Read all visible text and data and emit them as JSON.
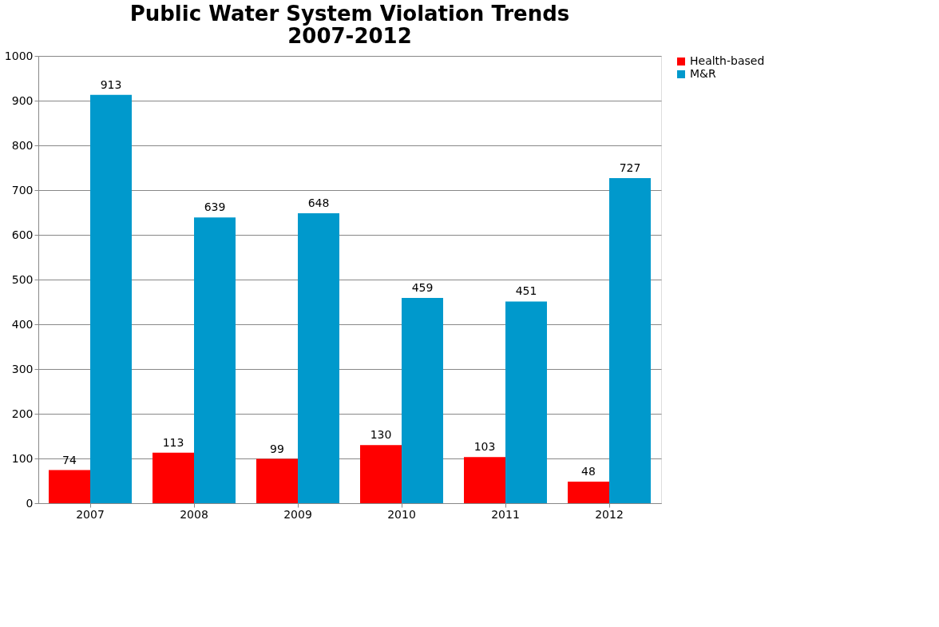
{
  "chart_data": {
    "type": "bar",
    "title": "Public Water System Violation Trends\n2007-2012",
    "categories": [
      "2007",
      "2008",
      "2009",
      "2010",
      "2011",
      "2012"
    ],
    "series": [
      {
        "name": "Health-based",
        "color": "#ff0000",
        "values": [
          74,
          113,
          99,
          130,
          103,
          48
        ]
      },
      {
        "name": "M&R",
        "color": "#0099cc",
        "values": [
          913,
          639,
          648,
          459,
          451,
          727
        ]
      }
    ],
    "ylim": [
      0,
      1000
    ],
    "yticks": [
      0,
      100,
      200,
      300,
      400,
      500,
      600,
      700,
      800,
      900,
      1000
    ],
    "grid": "y",
    "legend": "right",
    "data_labels": true
  }
}
